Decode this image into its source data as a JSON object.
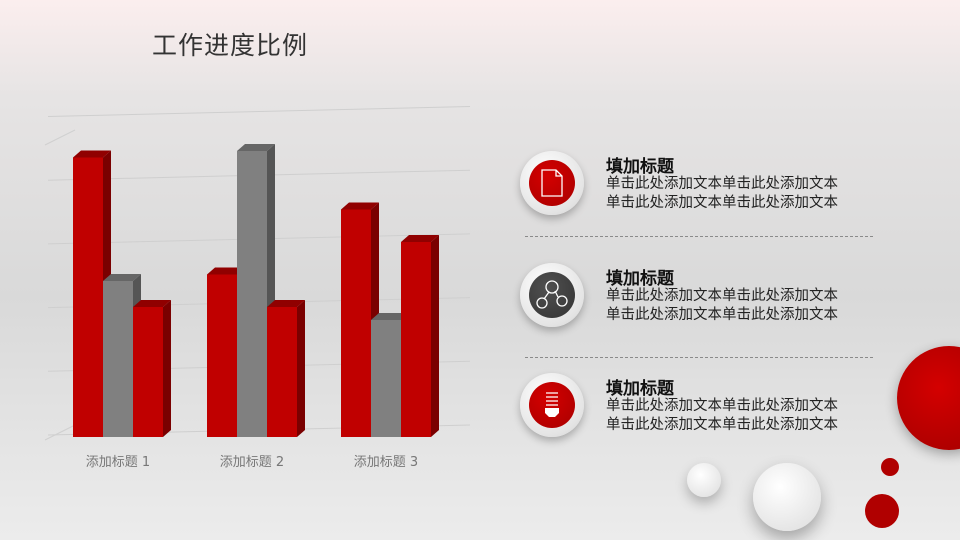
{
  "slide": {
    "title": "工作进度比例"
  },
  "chart_data": {
    "type": "bar",
    "style": "3d-clustered-column",
    "categories": [
      "添加标题 1",
      "添加标题 2",
      "添加标题 3"
    ],
    "series": [
      {
        "values": [
          4.3,
          2.5,
          3.5
        ],
        "color": "#c00000"
      },
      {
        "values": [
          2.4,
          4.4,
          1.8
        ],
        "color": "#808080"
      },
      {
        "values": [
          2.0,
          2.0,
          3.0
        ],
        "color": "#c00000"
      }
    ],
    "ylim": [
      0,
      5
    ],
    "grid": true,
    "legend": "none"
  },
  "items": [
    {
      "title": "填加标题",
      "line1": "单击此处添加文本单击此处添加文本",
      "line2": "单击此处添加文本单击此处添加文本",
      "icon": "document-icon"
    },
    {
      "title": "填加标题",
      "line1": "单击此处添加文本单击此处添加文本",
      "line2": "单击此处添加文本单击此处添加文本",
      "icon": "network-icon"
    },
    {
      "title": "填加标题",
      "line1": "单击此处添加文本单击此处添加文本",
      "line2": "单击此处添加文本单击此处添加文本",
      "icon": "lightbulb-icon"
    }
  ],
  "colors": {
    "accent": "#c00000",
    "dark": "#404040"
  }
}
